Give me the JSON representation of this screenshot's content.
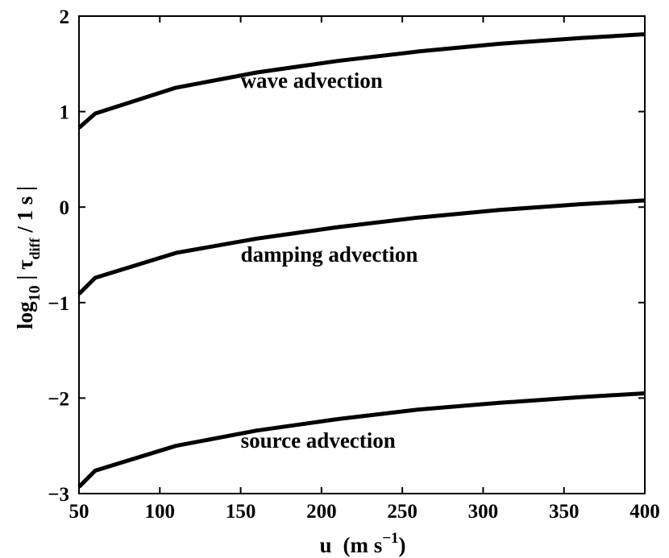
{
  "chart_data": {
    "type": "line",
    "title": "",
    "xlabel": {
      "main": "u",
      "unit_prefix": "(m s",
      "unit_exp": "−1",
      "unit_suffix": ")"
    },
    "ylabel": {
      "prefix": "log",
      "sub1": "10",
      "mid": " | τ",
      "sub2": "diff",
      "suffix": " / 1 s |"
    },
    "xlim": [
      50,
      400
    ],
    "ylim": [
      -3,
      2
    ],
    "xticks": [
      50,
      100,
      150,
      200,
      250,
      300,
      350,
      400
    ],
    "yticks": [
      -3,
      -2,
      -1,
      0,
      1,
      2
    ],
    "ytick_labels": [
      "−3",
      "−2",
      "−1",
      "0",
      "1",
      "2"
    ],
    "grid": false,
    "line_color": "#000000",
    "series": [
      {
        "name": "wave advection",
        "x": [
          50,
          60,
          110,
          160,
          210,
          260,
          310,
          360,
          400
        ],
        "y": [
          0.83,
          0.98,
          1.25,
          1.41,
          1.53,
          1.63,
          1.71,
          1.77,
          1.81
        ]
      },
      {
        "name": "damping advection",
        "x": [
          50,
          60,
          110,
          160,
          210,
          260,
          310,
          360,
          400
        ],
        "y": [
          -0.91,
          -0.74,
          -0.48,
          -0.33,
          -0.21,
          -0.11,
          -0.03,
          0.03,
          0.07
        ]
      },
      {
        "name": "source advection",
        "x": [
          50,
          60,
          110,
          160,
          210,
          260,
          310,
          360,
          400
        ],
        "y": [
          -2.93,
          -2.76,
          -2.5,
          -2.34,
          -2.22,
          -2.12,
          -2.05,
          -1.99,
          -1.95
        ]
      }
    ],
    "annotations": [
      {
        "text": "wave advection",
        "x": 150,
        "y": 1.25
      },
      {
        "text": "damping advection",
        "x": 150,
        "y": -0.57
      },
      {
        "text": "source advection",
        "x": 150,
        "y": -2.52
      }
    ]
  }
}
